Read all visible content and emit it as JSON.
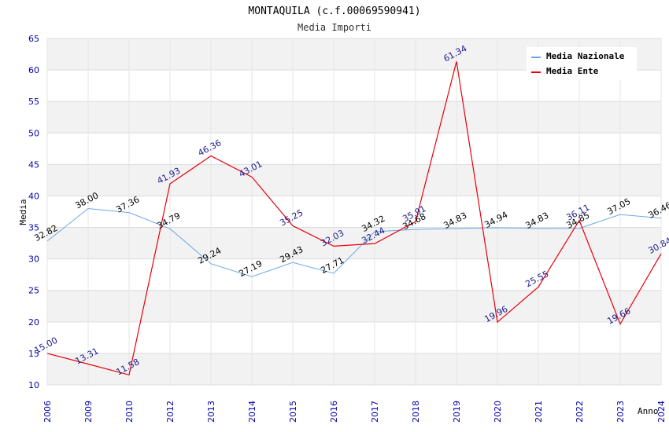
{
  "chart_data": {
    "type": "line",
    "title": "MONTAQUILA (c.f.00069590941)",
    "subtitle": "Media Importi",
    "xlabel": "Anno",
    "ylabel": "Media",
    "ylim": [
      10,
      65
    ],
    "yticks": [
      10,
      15,
      20,
      25,
      30,
      35,
      40,
      45,
      50,
      55,
      60,
      65
    ],
    "grid": true,
    "legend_position": "top-right",
    "categories": [
      "2006",
      "2009",
      "2010",
      "2012",
      "2013",
      "2014",
      "2015",
      "2016",
      "2017",
      "2018",
      "2019",
      "2020",
      "2021",
      "2022",
      "2023",
      "2024"
    ],
    "series": [
      {
        "name": "Media Nazionale",
        "color": "#6aaae4",
        "values": [
          32.82,
          38.0,
          37.36,
          34.79,
          29.24,
          27.19,
          29.43,
          27.71,
          34.32,
          34.68,
          34.83,
          34.94,
          34.83,
          34.85,
          37.05,
          36.46
        ],
        "labels": [
          "32.82",
          "38.00",
          "37.36",
          "34.79",
          "29.24",
          "27.19",
          "29.43",
          "27.71",
          "34.32",
          "34.68",
          "34.83",
          "34.94",
          "34.83",
          "34.85",
          "37.05",
          "36.46"
        ]
      },
      {
        "name": "Media Ente",
        "color": "#e8000b",
        "values": [
          15.0,
          13.31,
          11.58,
          41.93,
          46.36,
          43.01,
          35.25,
          32.03,
          32.44,
          35.91,
          61.34,
          19.96,
          25.55,
          36.11,
          19.66,
          30.84
        ],
        "labels": [
          "15.00",
          "13.31",
          "11.58",
          "41.93",
          "46.36",
          "43.01",
          "35.25",
          "32.03",
          "32.44",
          "35.91",
          "61.34",
          "19.96",
          "25.55",
          "36.11",
          "19.66",
          "30.84"
        ]
      }
    ]
  }
}
